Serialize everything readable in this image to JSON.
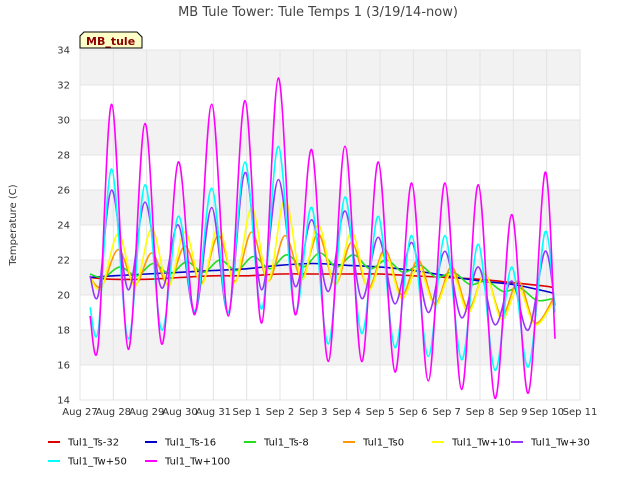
{
  "chart_data": {
    "type": "line",
    "title": "MB Tule Tower: Tule Temps 1 (3/19/14-now)",
    "badge": "MB_tule",
    "ylabel": "Temperature (C)",
    "xlabel": "",
    "xlim": [
      0,
      15
    ],
    "ylim": [
      14,
      34
    ],
    "yticks": [
      14,
      16,
      18,
      20,
      22,
      24,
      26,
      28,
      30,
      32,
      34
    ],
    "x_tick_values": [
      0,
      1,
      2,
      3,
      4,
      5,
      6,
      7,
      8,
      9,
      10,
      11,
      12,
      13,
      14,
      15
    ],
    "x_tick_labels": [
      "Aug 27",
      "Aug 28",
      "Aug 29",
      "Aug 30",
      "Aug 31",
      "Sep 1",
      "Sep 2",
      "Sep 3",
      "Sep 4",
      "Sep 5",
      "Sep 6",
      "Sep 7",
      "Sep 8",
      "Sep 9",
      "Sep 10",
      "Sep 11"
    ],
    "x_units": "days since Aug 27 00:00",
    "grid": true,
    "legend_position": "bottom",
    "series": [
      {
        "name": "Tul1_Ts-32",
        "color": "#dd0000",
        "x": [
          0.3,
          1,
          2,
          3,
          4,
          5,
          6,
          7,
          8,
          9,
          10,
          11,
          12,
          13,
          14,
          14.2
        ],
        "y": [
          21.0,
          20.9,
          20.9,
          21.0,
          21.1,
          21.1,
          21.2,
          21.2,
          21.2,
          21.2,
          21.1,
          21.0,
          20.9,
          20.7,
          20.5,
          20.4
        ]
      },
      {
        "name": "Tul1_Ts-16",
        "color": "#0000cc",
        "x": [
          0.3,
          1,
          2,
          3,
          4,
          5,
          6,
          7,
          8,
          9,
          10,
          11,
          12,
          13,
          14,
          14.2
        ],
        "y": [
          21.0,
          21.1,
          21.2,
          21.3,
          21.4,
          21.5,
          21.7,
          21.8,
          21.7,
          21.6,
          21.4,
          21.1,
          20.8,
          20.6,
          20.2,
          20.1
        ]
      },
      {
        "name": "Tul1_Ts-8",
        "color": "#22dd22",
        "x": [
          0.3,
          0.7,
          1.2,
          1.7,
          2.2,
          2.7,
          3.2,
          3.7,
          4.2,
          4.7,
          5.2,
          5.7,
          6.2,
          6.7,
          7.2,
          7.7,
          8.2,
          8.7,
          9.2,
          9.7,
          10.2,
          10.7,
          11.2,
          11.7,
          12.2,
          12.7,
          13.2,
          13.7,
          14.2
        ],
        "y": [
          21.2,
          21.0,
          21.6,
          21.1,
          21.8,
          21.2,
          21.9,
          21.3,
          22.0,
          21.4,
          22.2,
          21.5,
          22.3,
          21.6,
          22.4,
          21.6,
          22.3,
          21.5,
          22.0,
          21.3,
          21.7,
          21.0,
          21.3,
          20.6,
          20.8,
          20.2,
          20.4,
          19.7,
          19.8
        ]
      },
      {
        "name": "Tul1_Ts0",
        "color": "#ff9900",
        "x": [
          0.3,
          0.65,
          1.15,
          1.65,
          2.15,
          2.65,
          3.15,
          3.65,
          4.15,
          4.65,
          5.15,
          5.65,
          6.15,
          6.65,
          7.15,
          7.65,
          8.15,
          8.65,
          9.15,
          9.65,
          10.15,
          10.65,
          11.15,
          11.65,
          12.15,
          12.65,
          13.15,
          13.65,
          14.2
        ],
        "y": [
          21.0,
          20.5,
          22.6,
          20.6,
          22.4,
          20.6,
          22.8,
          20.7,
          23.4,
          20.8,
          23.6,
          20.8,
          23.4,
          21.0,
          23.5,
          20.6,
          23.0,
          20.4,
          22.6,
          20.0,
          22.0,
          19.5,
          21.6,
          19.2,
          21.2,
          18.8,
          20.8,
          18.4,
          19.8
        ]
      },
      {
        "name": "Tul1_Tw+10",
        "color": "#ffff00",
        "x": [
          0.3,
          0.65,
          1.15,
          1.65,
          2.15,
          2.65,
          3.15,
          3.65,
          4.15,
          4.65,
          5.15,
          5.65,
          6.15,
          6.65,
          7.15,
          7.65,
          8.15,
          8.65,
          9.15,
          9.65,
          10.15,
          10.65,
          11.15,
          11.65,
          12.15,
          12.65,
          13.15,
          13.65,
          14.2
        ],
        "y": [
          21.0,
          20.4,
          23.5,
          20.5,
          23.8,
          20.5,
          23.6,
          20.6,
          23.9,
          20.7,
          25.0,
          20.8,
          25.5,
          20.9,
          24.0,
          20.6,
          23.6,
          20.3,
          22.4,
          19.8,
          21.6,
          19.4,
          21.3,
          19.0,
          21.2,
          18.6,
          20.4,
          18.3,
          19.6
        ]
      },
      {
        "name": "Tul1_Tw+30",
        "color": "#9933ff",
        "x": [
          0.3,
          0.55,
          0.95,
          1.45,
          1.95,
          2.45,
          2.95,
          3.45,
          3.95,
          4.45,
          4.95,
          5.45,
          5.95,
          6.45,
          6.95,
          7.45,
          7.95,
          8.45,
          8.95,
          9.45,
          9.95,
          10.45,
          10.95,
          11.45,
          11.95,
          12.45,
          12.95,
          13.45,
          13.95,
          14.25
        ],
        "y": [
          21.1,
          20.0,
          26.0,
          20.3,
          25.3,
          20.4,
          24.0,
          19.0,
          25.0,
          19.0,
          27.0,
          20.3,
          26.6,
          20.5,
          24.3,
          20.2,
          24.8,
          19.8,
          23.3,
          19.5,
          23.0,
          19.0,
          22.5,
          18.7,
          21.6,
          18.3,
          20.8,
          18.0,
          22.5,
          19.4
        ]
      },
      {
        "name": "Tul1_Tw+50",
        "color": "#00ffff",
        "x": [
          0.3,
          0.55,
          0.95,
          1.45,
          1.95,
          2.45,
          2.95,
          3.45,
          3.95,
          4.45,
          4.95,
          5.45,
          5.95,
          6.45,
          6.95,
          7.45,
          7.95,
          8.45,
          8.95,
          9.45,
          9.95,
          10.45,
          10.95,
          11.45,
          11.95,
          12.45,
          12.95,
          13.45,
          13.95,
          14.25
        ],
        "y": [
          19.3,
          18.0,
          27.2,
          17.5,
          26.3,
          18.0,
          24.5,
          19.1,
          26.1,
          19.0,
          27.6,
          19.2,
          28.5,
          19.0,
          25.0,
          17.2,
          25.6,
          17.8,
          24.5,
          17.0,
          23.4,
          16.5,
          23.4,
          16.3,
          22.9,
          15.7,
          21.6,
          15.9,
          23.6,
          19.0
        ]
      },
      {
        "name": "Tul1_Tw+100",
        "color": "#ff00ff",
        "x": [
          0.3,
          0.55,
          0.95,
          1.45,
          1.95,
          2.45,
          2.95,
          3.45,
          3.95,
          4.45,
          4.95,
          5.45,
          5.95,
          6.45,
          6.95,
          7.45,
          7.95,
          8.45,
          8.95,
          9.45,
          9.95,
          10.45,
          10.95,
          11.45,
          11.95,
          12.45,
          12.95,
          13.45,
          13.95,
          14.25
        ],
        "y": [
          18.8,
          17.2,
          30.9,
          16.9,
          29.8,
          17.2,
          27.6,
          18.9,
          30.9,
          18.8,
          31.1,
          18.4,
          32.4,
          18.9,
          28.3,
          16.2,
          28.5,
          16.2,
          27.6,
          15.6,
          26.4,
          15.1,
          26.4,
          14.6,
          26.3,
          14.1,
          24.6,
          14.4,
          27.0,
          17.5
        ]
      }
    ]
  }
}
